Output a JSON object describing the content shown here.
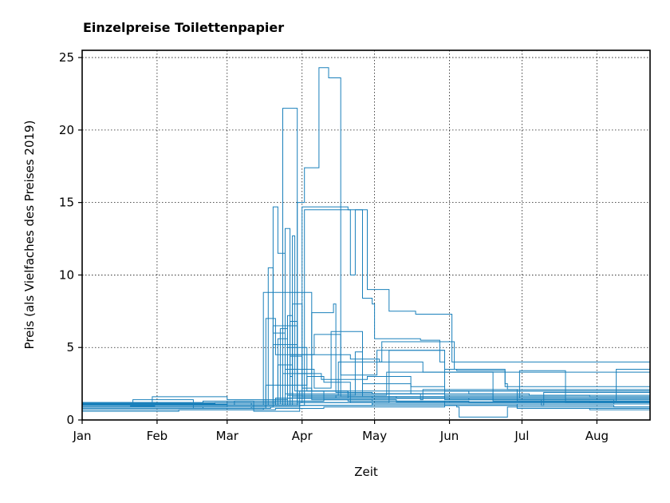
{
  "chart_data": {
    "type": "line",
    "title": "Einzelpreise Toilettenpapier",
    "xlabel": "Zeit",
    "ylabel": "Preis (als Vielfaches des Preises 2019)",
    "x_ticks": [
      "Jan",
      "Feb",
      "Mar",
      "Apr",
      "May",
      "Jun",
      "Jul",
      "Aug"
    ],
    "x_tick_days": [
      0,
      31,
      60,
      91,
      121,
      152,
      182,
      213
    ],
    "xlim_days": [
      0,
      235
    ],
    "xlim": [
      "2020-01-01",
      "2020-08-23"
    ],
    "y_ticks": [
      0,
      5,
      10,
      15,
      20,
      25
    ],
    "ylim": [
      0,
      25.5
    ],
    "grid": true,
    "color": "#1a80bb",
    "series": [
      {
        "x": [
          0,
          10,
          20,
          30,
          40,
          50,
          60,
          74,
          75,
          85,
          95,
          110,
          130,
          150,
          180,
          235
        ],
        "y": [
          1.0,
          1.05,
          0.95,
          1.0,
          1.0,
          1.05,
          1.0,
          1.0,
          8.8,
          8.8,
          1.4,
          1.3,
          1.25,
          1.2,
          1.2,
          1.2
        ]
      },
      {
        "x": [
          0,
          15,
          30,
          45,
          60,
          82,
          83,
          88,
          89,
          100,
          120,
          150,
          235
        ],
        "y": [
          1.1,
          1.1,
          1.2,
          1.1,
          1.1,
          1.1,
          21.5,
          21.5,
          1.5,
          1.4,
          1.3,
          1.25,
          1.2
        ]
      },
      {
        "x": [
          0,
          30,
          60,
          88,
          89,
          91,
          92,
          97,
          98,
          101,
          102,
          106,
          107,
          120,
          150,
          235
        ],
        "y": [
          1.0,
          1.0,
          1.0,
          1.0,
          15.0,
          15.0,
          17.4,
          17.4,
          24.3,
          24.3,
          23.6,
          23.6,
          1.6,
          1.5,
          1.4,
          1.3
        ]
      },
      {
        "x": [
          0,
          30,
          60,
          90,
          91,
          110,
          111,
          113,
          117,
          118,
          120,
          126,
          127,
          135,
          138,
          148,
          153,
          235
        ],
        "y": [
          1.1,
          1.1,
          1.2,
          1.2,
          14.7,
          14.5,
          10.0,
          14.5,
          14.5,
          9.0,
          9.0,
          9.0,
          7.5,
          7.5,
          7.3,
          7.3,
          4.0,
          3.4
        ]
      },
      {
        "x": [
          0,
          30,
          60,
          91,
          92,
          115,
          116,
          120,
          121,
          139,
          140,
          148,
          150,
          155,
          175,
          176,
          235
        ],
        "y": [
          1.0,
          1.0,
          1.0,
          1.0,
          14.5,
          14.5,
          8.4,
          8.0,
          5.6,
          5.6,
          5.5,
          4.0,
          3.5,
          3.4,
          2.5,
          2.1,
          2.1
        ]
      },
      {
        "x": [
          0,
          40,
          70,
          78,
          79,
          80,
          81,
          83,
          84,
          86,
          87,
          100,
          200,
          235
        ],
        "y": [
          1.2,
          1.2,
          1.1,
          1.1,
          14.7,
          14.7,
          11.5,
          11.5,
          1.8,
          1.8,
          1.6,
          1.5,
          1.5,
          1.4
        ]
      },
      {
        "x": [
          0,
          50,
          76,
          77,
          78,
          79,
          83,
          84,
          85,
          86,
          87,
          88,
          100,
          150,
          235
        ],
        "y": [
          0.9,
          0.9,
          1.0,
          10.5,
          10.5,
          6.0,
          6.0,
          13.2,
          13.2,
          3.0,
          12.7,
          2.0,
          1.6,
          1.5,
          1.3
        ]
      },
      {
        "x": [
          0,
          60,
          80,
          81,
          82,
          85,
          86,
          110,
          111,
          123,
          124,
          153,
          154,
          174,
          175,
          235
        ],
        "y": [
          1.0,
          1.0,
          1.0,
          5.6,
          5.6,
          5.0,
          4.5,
          4.5,
          4.2,
          4.0,
          5.4,
          5.4,
          3.5,
          3.5,
          2.3,
          2.3
        ]
      },
      {
        "x": [
          0,
          50,
          70,
          75,
          76,
          79,
          80,
          95,
          96,
          106,
          107,
          121,
          122,
          150,
          235
        ],
        "y": [
          1.0,
          1.0,
          1.1,
          1.1,
          7.0,
          7.0,
          4.5,
          4.5,
          5.9,
          5.9,
          3.1,
          3.1,
          4.8,
          2.0,
          1.8
        ]
      },
      {
        "x": [
          0,
          30,
          60,
          78,
          79,
          88,
          89,
          95,
          96,
          104,
          105,
          120,
          150,
          235
        ],
        "y": [
          1.1,
          1.1,
          1.1,
          1.1,
          6.5,
          6.5,
          3.2,
          7.4,
          7.4,
          8.0,
          1.9,
          1.8,
          1.7,
          1.6
        ]
      },
      {
        "x": [
          0,
          60,
          70,
          71,
          80,
          95,
          105,
          106,
          140,
          141,
          160,
          235
        ],
        "y": [
          0.8,
          0.8,
          0.9,
          1.0,
          1.5,
          1.5,
          1.7,
          4.0,
          4.0,
          3.3,
          3.3,
          1.4
        ]
      },
      {
        "x": [
          0,
          28,
          29,
          40,
          60,
          84,
          85,
          92,
          93,
          110,
          140,
          170,
          200,
          235
        ],
        "y": [
          1.2,
          1.2,
          1.6,
          1.6,
          1.4,
          1.4,
          5.0,
          5.0,
          2.0,
          1.8,
          1.8,
          1.6,
          1.5,
          1.5
        ]
      },
      {
        "x": [
          0,
          60,
          83,
          84,
          95,
          96,
          102,
          103,
          115,
          116,
          135,
          136,
          150,
          235
        ],
        "y": [
          1.0,
          1.0,
          1.0,
          3.5,
          3.5,
          2.2,
          2.2,
          6.1,
          6.1,
          2.5,
          2.5,
          1.8,
          1.6,
          1.5
        ]
      },
      {
        "x": [
          0,
          40,
          60,
          82,
          83,
          98,
          99,
          117,
          118,
          135,
          136,
          150,
          235
        ],
        "y": [
          0.9,
          0.9,
          1.0,
          1.0,
          3.2,
          3.2,
          2.8,
          2.8,
          3.0,
          3.0,
          2.3,
          2.0,
          1.6
        ]
      },
      {
        "x": [
          0,
          20,
          21,
          45,
          46,
          60,
          85,
          86,
          90,
          91,
          130,
          160,
          190,
          220,
          235
        ],
        "y": [
          1.0,
          1.0,
          1.4,
          1.4,
          1.0,
          1.0,
          1.0,
          4.4,
          4.4,
          1.6,
          1.5,
          1.4,
          1.0,
          0.9,
          0.9
        ]
      },
      {
        "x": [
          0,
          50,
          80,
          81,
          86,
          87,
          125,
          126,
          140,
          170,
          200,
          235
        ],
        "y": [
          1.1,
          1.1,
          1.1,
          3.8,
          3.8,
          1.7,
          1.7,
          3.3,
          3.3,
          1.4,
          1.3,
          1.3
        ]
      },
      {
        "x": [
          0,
          40,
          75,
          76,
          82,
          92,
          93,
          100,
          110,
          111,
          150,
          235
        ],
        "y": [
          0.7,
          0.7,
          0.8,
          2.4,
          2.4,
          2.4,
          3.0,
          2.6,
          2.6,
          1.2,
          1.1,
          1.0
        ]
      },
      {
        "x": [
          0,
          60,
          85,
          86,
          88,
          89,
          120,
          140,
          141,
          160,
          180,
          181,
          200,
          220,
          221,
          235
        ],
        "y": [
          1.1,
          1.1,
          1.1,
          6.8,
          6.8,
          1.5,
          1.5,
          1.4,
          2.1,
          2.1,
          1.5,
          3.4,
          1.4,
          1.3,
          3.5,
          1.3
        ]
      },
      {
        "x": [
          0,
          35,
          50,
          65,
          78,
          79,
          88,
          89,
          100,
          126,
          127,
          150,
          180,
          210,
          235
        ],
        "y": [
          0.9,
          0.9,
          0.8,
          0.8,
          0.9,
          5.2,
          5.2,
          1.2,
          1.2,
          1.2,
          4.8,
          1.5,
          1.3,
          1.2,
          1.2
        ]
      },
      {
        "x": [
          0,
          60,
          86,
          87,
          90,
          91,
          94,
          95,
          135,
          160,
          185,
          210,
          235
        ],
        "y": [
          1.0,
          1.0,
          1.0,
          8.0,
          8.0,
          2.2,
          2.2,
          2.0,
          2.0,
          1.8,
          1.7,
          1.6,
          1.6
        ]
      },
      {
        "x": [
          0,
          15,
          16,
          30,
          50,
          51,
          70,
          90,
          110,
          140,
          170,
          200,
          235
        ],
        "y": [
          1.0,
          1.0,
          1.2,
          1.1,
          1.1,
          1.0,
          1.1,
          2.0,
          1.8,
          1.6,
          1.4,
          1.3,
          1.2
        ]
      },
      {
        "x": [
          0,
          20,
          40,
          60,
          80,
          100,
          120,
          150,
          180,
          210,
          235
        ],
        "y": [
          0.6,
          0.6,
          0.7,
          0.7,
          0.8,
          0.9,
          0.9,
          1.0,
          0.8,
          0.7,
          0.7
        ]
      },
      {
        "x": [
          0,
          25,
          50,
          75,
          100,
          125,
          150,
          175,
          200,
          235
        ],
        "y": [
          1.2,
          1.2,
          1.3,
          1.3,
          1.5,
          1.5,
          1.4,
          1.4,
          1.3,
          1.3
        ]
      },
      {
        "x": [
          0,
          30,
          60,
          90,
          120,
          155,
          156,
          175,
          176,
          200,
          235
        ],
        "y": [
          0.9,
          0.9,
          0.9,
          1.0,
          1.0,
          0.9,
          0.2,
          0.2,
          0.9,
          0.9,
          0.9
        ]
      },
      {
        "x": [
          0,
          30,
          60,
          80,
          100,
          130,
          160,
          190,
          220,
          235
        ],
        "y": [
          1.05,
          1.05,
          1.1,
          1.3,
          1.4,
          1.3,
          1.2,
          1.2,
          1.1,
          1.1
        ]
      },
      {
        "x": [
          0,
          45,
          46,
          60,
          90,
          120,
          150,
          190,
          191,
          220,
          235
        ],
        "y": [
          0.8,
          0.8,
          1.0,
          1.0,
          1.2,
          1.1,
          1.0,
          1.0,
          1.9,
          1.9,
          1.9
        ]
      },
      {
        "x": [
          0,
          30,
          55,
          80,
          110,
          140,
          170,
          200,
          235
        ],
        "y": [
          1.15,
          1.15,
          1.2,
          1.5,
          1.6,
          1.5,
          1.3,
          1.2,
          1.2
        ]
      },
      {
        "x": [
          0,
          40,
          62,
          63,
          70,
          71,
          90,
          120,
          150,
          180,
          210,
          235
        ],
        "y": [
          1.0,
          1.0,
          1.0,
          1.3,
          1.3,
          0.6,
          1.0,
          1.1,
          1.1,
          0.8,
          0.8,
          0.8
        ]
      },
      {
        "x": [
          0,
          60,
          84,
          85,
          86,
          87,
          110,
          150,
          235
        ],
        "y": [
          1.0,
          1.0,
          1.0,
          7.2,
          7.2,
          1.8,
          1.6,
          1.5,
          1.4
        ]
      },
      {
        "x": [
          0,
          60,
          81,
          82,
          84,
          85,
          112,
          113,
          115,
          116,
          150,
          235
        ],
        "y": [
          1.1,
          1.1,
          1.1,
          6.3,
          6.3,
          1.7,
          1.7,
          4.7,
          4.7,
          1.6,
          1.5,
          1.4
        ]
      }
    ]
  }
}
